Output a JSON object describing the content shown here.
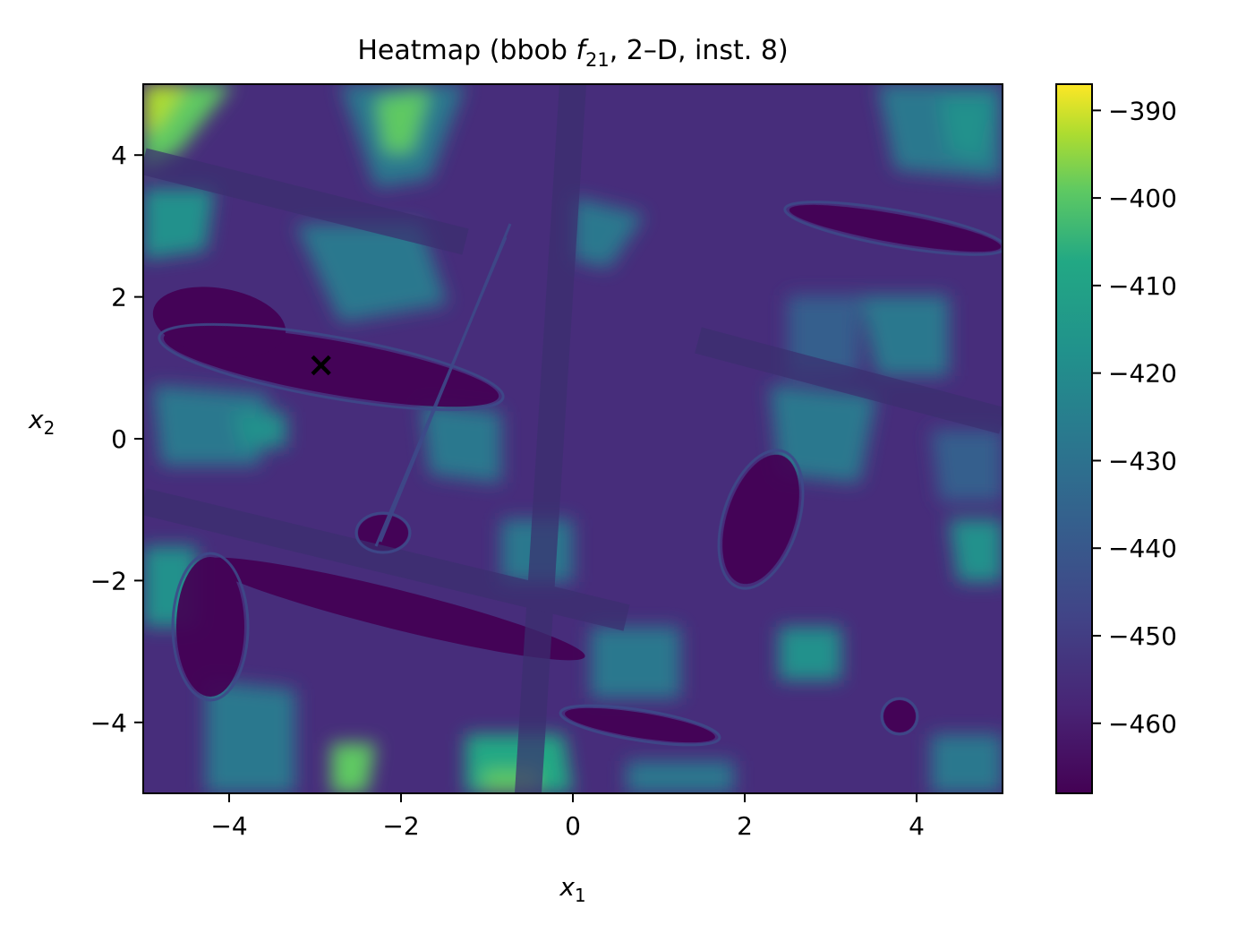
{
  "chart_data": {
    "type": "heatmap",
    "title": {
      "main": "Heatmap (bbob ",
      "func_letter": "f",
      "func_sub": "21",
      "rest": ", 2–D, inst. 8)"
    },
    "xlabel": {
      "main": "x",
      "sub": "1"
    },
    "ylabel": {
      "main": "x",
      "sub": "2"
    },
    "xlim": [
      -5,
      5
    ],
    "ylim": [
      -5,
      5
    ],
    "x_ticks": [
      -4,
      -2,
      0,
      2,
      4
    ],
    "x_tick_labels": [
      "−4",
      "−2",
      "0",
      "2",
      "4"
    ],
    "y_ticks": [
      -4,
      -2,
      0,
      2,
      4
    ],
    "y_tick_labels": [
      "−4",
      "−2",
      "0",
      "2",
      "4"
    ],
    "colormap": "viridis",
    "colorbar": {
      "vmin": -468,
      "vmax": -387,
      "ticks": [
        -460,
        -450,
        -440,
        -430,
        -420,
        -410,
        -400,
        -390
      ],
      "tick_labels": [
        "−460",
        "−450",
        "−440",
        "−430",
        "−420",
        "−410",
        "−400",
        "−390"
      ]
    },
    "optimum_marker": {
      "x": -2.93,
      "y": 1.05,
      "symbol": "×",
      "color": "#ffffff"
    },
    "colors": {
      "low": "#440154",
      "mid_low": "#472d7b",
      "mid": "#31688e",
      "mid_high": "#21918c",
      "high": "#5ec962",
      "max": "#fde725"
    }
  }
}
